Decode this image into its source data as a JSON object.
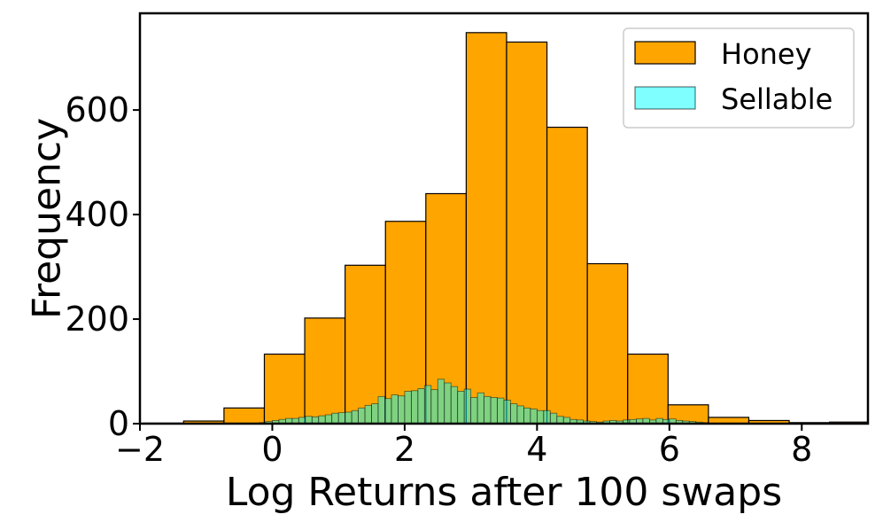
{
  "chart_data": {
    "type": "bar",
    "xlabel": "Log Returns after 100 swaps",
    "ylabel": "Frequency",
    "xlim": [
      -2,
      9
    ],
    "ylim": [
      0,
      785
    ],
    "xticks": [
      -2,
      0,
      2,
      4,
      6,
      8
    ],
    "xtick_labels": [
      "−2",
      "0",
      "2",
      "4",
      "6",
      "8"
    ],
    "yticks": [
      0,
      200,
      400,
      600
    ],
    "ytick_labels": [
      "0",
      "200",
      "400",
      "600"
    ],
    "grid": false,
    "legend": {
      "placement": "top-right"
    },
    "series": [
      {
        "name": "Honey",
        "color": "#ffa500",
        "edgecolor": "#000000",
        "bins": [
          [
            -1.95,
            -1.34,
            1
          ],
          [
            -1.34,
            -0.73,
            5
          ],
          [
            -0.73,
            -0.12,
            30
          ],
          [
            -0.12,
            0.49,
            133
          ],
          [
            0.49,
            1.1,
            202
          ],
          [
            1.1,
            1.71,
            303
          ],
          [
            1.71,
            2.32,
            387
          ],
          [
            2.32,
            2.93,
            440
          ],
          [
            2.93,
            3.54,
            748
          ],
          [
            3.54,
            4.15,
            730
          ],
          [
            4.15,
            4.76,
            567
          ],
          [
            4.76,
            5.37,
            306
          ],
          [
            5.37,
            5.98,
            133
          ],
          [
            5.98,
            6.59,
            36
          ],
          [
            6.59,
            7.2,
            12
          ],
          [
            7.2,
            7.81,
            6
          ],
          [
            7.81,
            8.42,
            2
          ],
          [
            8.42,
            9.03,
            3
          ]
        ]
      },
      {
        "name": "Sellable",
        "color": "#00ffff",
        "alpha": 0.5,
        "edgecolor": "#000000",
        "bin_start": -0.3,
        "bin_width": 0.1,
        "values": [
          1,
          2,
          4,
          6,
          8,
          10,
          10,
          12,
          14,
          13,
          15,
          17,
          20,
          21,
          22,
          25,
          30,
          35,
          38,
          52,
          48,
          55,
          53,
          62,
          63,
          67,
          73,
          65,
          85,
          78,
          71,
          62,
          66,
          50,
          59,
          52,
          50,
          49,
          45,
          38,
          34,
          30,
          28,
          25,
          25,
          20,
          14,
          12,
          8,
          7,
          5,
          4,
          3,
          5,
          6,
          5,
          7,
          8,
          9,
          10,
          7,
          10,
          8,
          9,
          6,
          5,
          4,
          3,
          2,
          1
        ]
      }
    ]
  }
}
